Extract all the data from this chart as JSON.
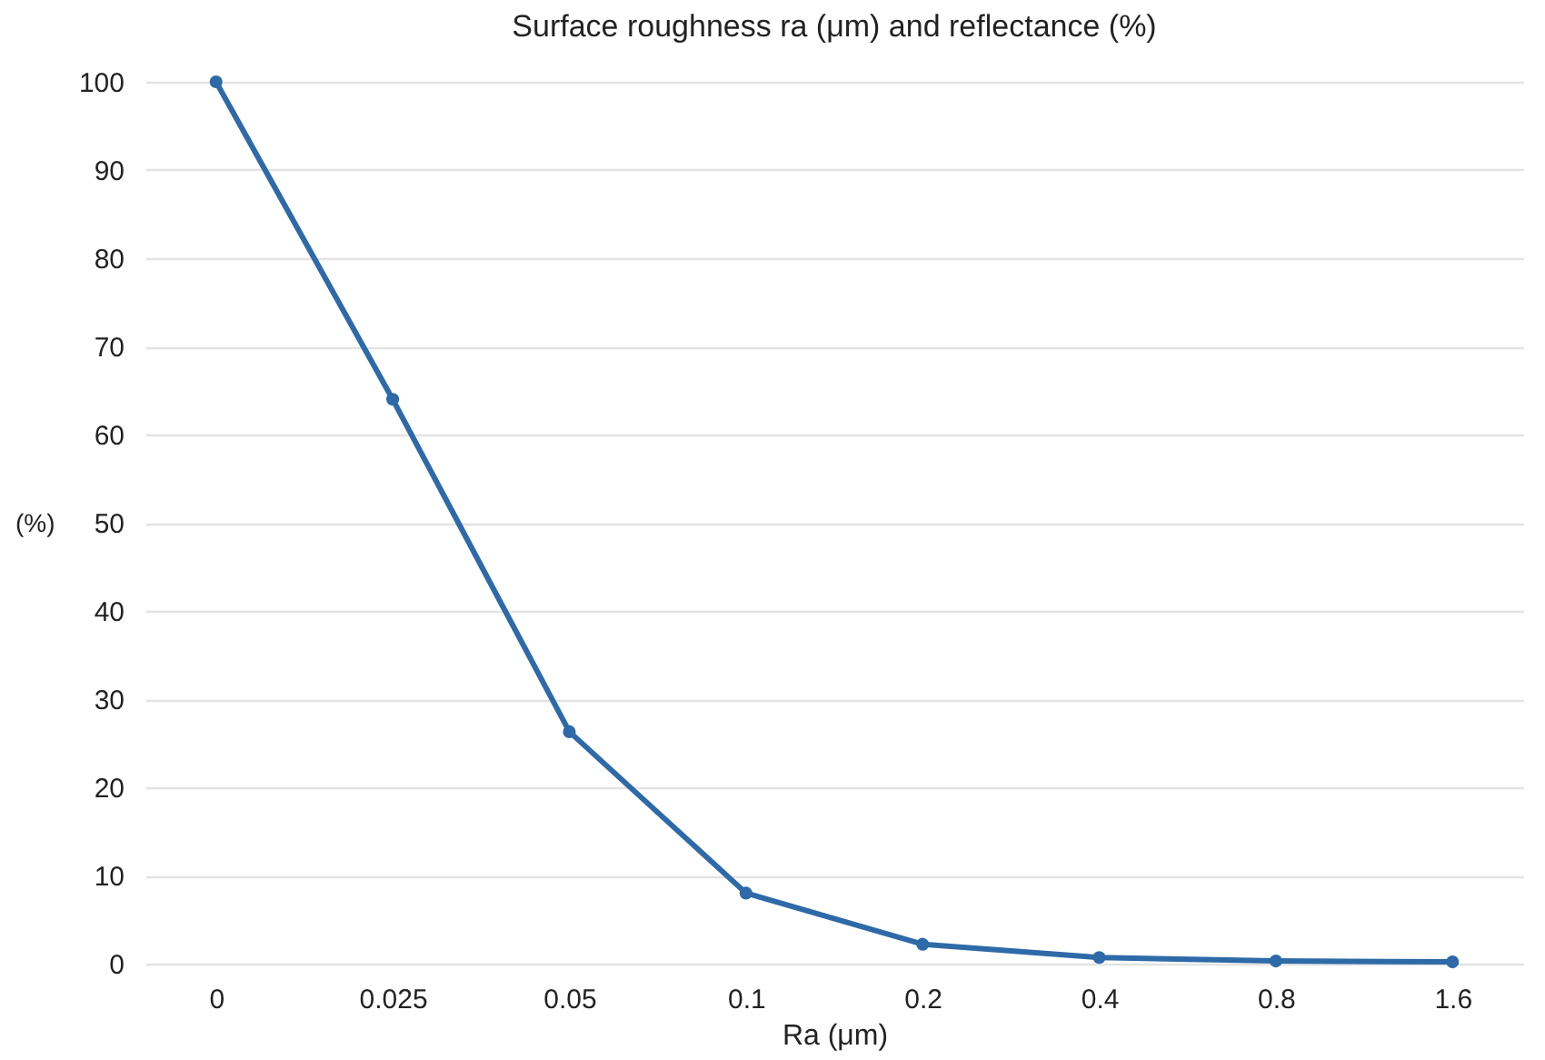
{
  "chart_data": {
    "type": "line",
    "title": "Surface roughness ra (μm) and reflectance (%)",
    "xlabel": "Ra (μm)",
    "ylabel": "(%)",
    "categories": [
      "0",
      "0.025",
      "0.05",
      "0.1",
      "0.2",
      "0.4",
      "0.8",
      "1.6"
    ],
    "series": [
      {
        "color": "#2e6aa8",
        "values": [
          100,
          64,
          26.3,
          8,
          2.2,
          0.7,
          0.3,
          0.2
        ]
      }
    ],
    "ylim": [
      0,
      100
    ],
    "yticks": [
      0,
      10,
      20,
      30,
      40,
      50,
      60,
      70,
      80,
      90,
      100
    ],
    "grid": "y",
    "marker": "circle",
    "line_style": "solid"
  }
}
